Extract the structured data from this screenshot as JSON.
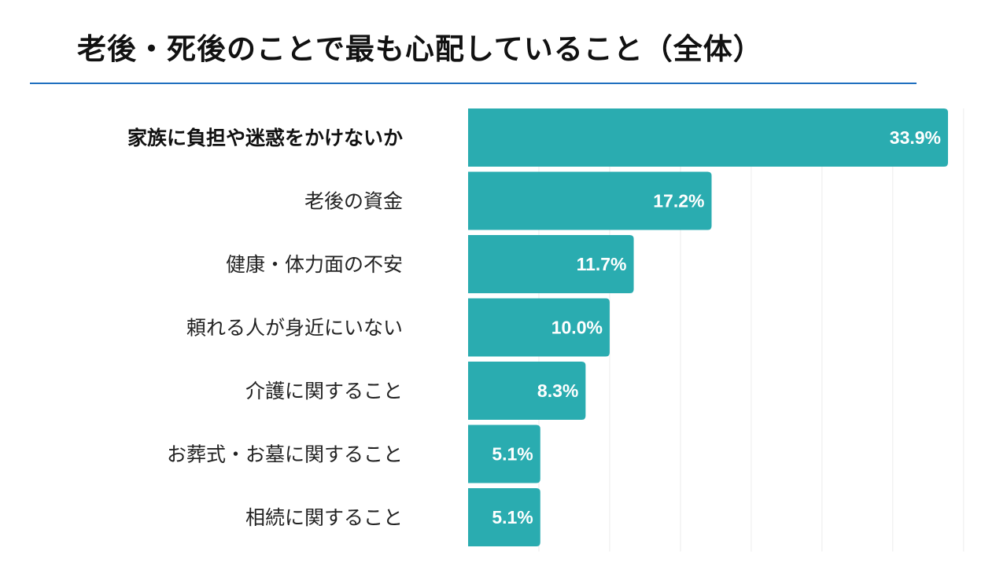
{
  "chart_data": {
    "type": "bar",
    "orientation": "horizontal",
    "title": "老後・死後のことで最も心配していること（全体）",
    "categories": [
      "家族に負担や迷惑をかけないか",
      "老後の資金",
      "健康・体力面の不安",
      "頼れる人が身近にいない",
      "介護に関すること",
      "お葬式・お墓に関すること",
      "相続に関すること"
    ],
    "values": [
      33.9,
      17.2,
      11.7,
      10.0,
      8.3,
      5.1,
      5.1
    ],
    "value_labels": [
      "33.9%",
      "17.2%",
      "11.7%",
      "10.0%",
      "8.3%",
      "5.1%",
      "5.1%"
    ],
    "xlim": [
      0,
      35
    ],
    "grid": true,
    "grid_step": 5,
    "bar_color": "#2aacb0",
    "highlight_index": 0
  },
  "colors": {
    "rule": "#1f6fbf",
    "bar": "#2aacb0"
  }
}
